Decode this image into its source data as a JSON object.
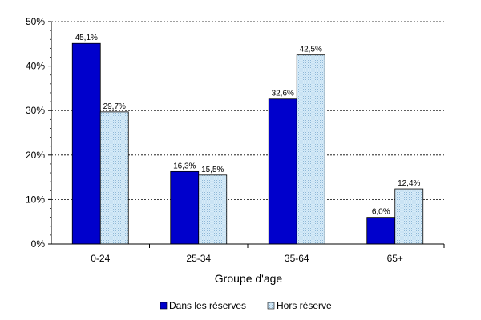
{
  "chart_data": {
    "type": "bar",
    "categories": [
      "0-24",
      "25-34",
      "35-64",
      "65+"
    ],
    "series": [
      {
        "name": "Dans les réserves",
        "values": [
          45.1,
          16.3,
          32.6,
          6.0
        ],
        "labels": [
          "45,1%",
          "16,3%",
          "32,6%",
          "6,0%"
        ],
        "color": "#0000cc",
        "pattern": "solid"
      },
      {
        "name": "Hors réserve",
        "values": [
          29.7,
          15.5,
          42.5,
          12.4
        ],
        "labels": [
          "29,7%",
          "15,5%",
          "42,5%",
          "12,4%"
        ],
        "color": "#cfe6f5",
        "pattern": "dotted"
      }
    ],
    "xlabel": "Groupe d'age",
    "ylabel": "",
    "ylim": [
      0,
      50
    ],
    "yticks": [
      0,
      10,
      20,
      30,
      40,
      50
    ],
    "ytick_labels": [
      "0%",
      "10%",
      "20%",
      "30%",
      "40%",
      "50%"
    ],
    "grid": true,
    "legend_position": "bottom"
  }
}
